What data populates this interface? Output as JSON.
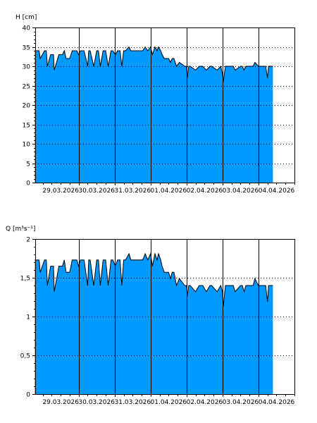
{
  "fill_color": "#0099ff",
  "chart_data": [
    {
      "type": "area",
      "ylabel": "H [cm]",
      "ylim": [
        0,
        40
      ],
      "yticks": [
        "0",
        "5",
        "10",
        "15",
        "20",
        "25",
        "30",
        "35",
        "40"
      ],
      "ytick_values": [
        0,
        5,
        10,
        15,
        20,
        25,
        30,
        35,
        40
      ],
      "xlim": [
        "2026-03-28 19:00",
        "2026-04-05 00:00"
      ],
      "x_tick_labels": [
        "29.03.2026",
        "30.03.2026",
        "31.03.2026",
        "01.04.2026",
        "02.04.2026",
        "03.04.2026",
        "04.04.2026"
      ],
      "x_tick_times": [
        29.5,
        30.5,
        31.5,
        32.5,
        33.5,
        34.5,
        35.5
      ],
      "x_grid_times": [
        30,
        31,
        32,
        33,
        34,
        35
      ],
      "grid": "horizontal dotted, vertical solid at midnight",
      "series": [
        {
          "x": [
            28.78,
            28.9,
            28.93,
            29.05,
            29.1,
            29.13,
            29.22,
            29.3,
            29.32,
            29.45,
            29.55,
            29.6,
            29.65,
            29.75,
            29.82,
            29.95,
            30.0,
            30.05,
            30.15,
            30.25,
            30.28,
            30.32,
            30.42,
            30.5,
            30.55,
            30.6,
            30.68,
            30.75,
            30.82,
            30.9,
            30.95,
            31.02,
            31.08,
            31.15,
            31.2,
            31.25,
            31.3,
            31.4,
            31.45,
            31.5,
            31.6,
            31.68,
            31.78,
            31.85,
            31.92,
            32.0,
            32.05,
            32.12,
            32.18,
            32.22,
            32.28,
            32.32,
            32.38,
            32.45,
            32.5,
            32.55,
            32.6,
            32.65,
            32.72,
            32.8,
            32.95,
            33.0,
            33.02,
            33.06,
            33.1,
            33.25,
            33.35,
            33.45,
            33.55,
            33.65,
            33.7,
            33.85,
            33.95,
            34.0,
            34.02,
            34.08,
            34.15,
            34.3,
            34.35,
            34.5,
            34.55,
            34.6,
            34.65,
            34.8,
            34.85,
            34.9,
            35.0,
            35.05,
            35.2,
            35.25,
            35.28,
            35.4
          ],
          "values": [
            34,
            34,
            32,
            34,
            34,
            30,
            33,
            33,
            29,
            33,
            33,
            34,
            32,
            32,
            34,
            34,
            33,
            34,
            34,
            30,
            34,
            34,
            30,
            34,
            34,
            30,
            34,
            34,
            30,
            34,
            34,
            33,
            34,
            34,
            30,
            34,
            34,
            35,
            34,
            34,
            34,
            34,
            34,
            35,
            34,
            35,
            33,
            35,
            34,
            35,
            34,
            33,
            32,
            32,
            32,
            31,
            32,
            32,
            30,
            31,
            30,
            30,
            27,
            30,
            30,
            29,
            30,
            30,
            29,
            30,
            30,
            29,
            30,
            28,
            26,
            30,
            30,
            30,
            29,
            30,
            30,
            29,
            30,
            30,
            30,
            31,
            30,
            30,
            30,
            27,
            30,
            30
          ]
        }
      ]
    },
    {
      "type": "area",
      "ylabel": "Q [m³s⁻¹]",
      "ylim": [
        0,
        2
      ],
      "yticks": [
        "0",
        "0,5",
        "1",
        "1,5",
        "2"
      ],
      "ytick_values": [
        0,
        0.5,
        1,
        1.5,
        2
      ],
      "xlim": [
        "2026-03-28 19:00",
        "2026-04-05 00:00"
      ],
      "x_tick_labels": [
        "29.03.2026",
        "30.03.2026",
        "31.03.2026",
        "01.04.2026",
        "02.04.2026",
        "03.04.2026",
        "04.04.2026"
      ],
      "x_tick_times": [
        29.5,
        30.5,
        31.5,
        32.5,
        33.5,
        34.5,
        35.5
      ],
      "x_grid_times": [
        30,
        31,
        32,
        33,
        34,
        35
      ],
      "grid": "horizontal dotted, vertical solid at midnight",
      "series": [
        {
          "x": [
            28.78,
            28.9,
            28.93,
            29.05,
            29.1,
            29.13,
            29.22,
            29.3,
            29.32,
            29.45,
            29.55,
            29.6,
            29.65,
            29.75,
            29.82,
            29.95,
            30.0,
            30.05,
            30.15,
            30.25,
            30.28,
            30.32,
            30.42,
            30.5,
            30.55,
            30.6,
            30.68,
            30.75,
            30.82,
            30.9,
            30.95,
            31.02,
            31.08,
            31.15,
            31.2,
            31.25,
            31.3,
            31.4,
            31.45,
            31.5,
            31.6,
            31.68,
            31.78,
            31.85,
            31.92,
            32.0,
            32.05,
            32.12,
            32.18,
            32.22,
            32.28,
            32.32,
            32.38,
            32.45,
            32.5,
            32.55,
            32.6,
            32.65,
            32.72,
            32.8,
            32.95,
            33.0,
            33.02,
            33.06,
            33.1,
            33.25,
            33.35,
            33.45,
            33.55,
            33.65,
            33.7,
            33.85,
            33.95,
            34.0,
            34.02,
            34.08,
            34.15,
            34.3,
            34.35,
            34.5,
            34.55,
            34.6,
            34.65,
            34.8,
            34.85,
            34.9,
            35.0,
            35.05,
            35.2,
            35.25,
            35.28,
            35.4
          ],
          "values": [
            1.73,
            1.73,
            1.57,
            1.73,
            1.73,
            1.4,
            1.65,
            1.65,
            1.32,
            1.65,
            1.65,
            1.73,
            1.57,
            1.57,
            1.73,
            1.73,
            1.65,
            1.73,
            1.73,
            1.4,
            1.73,
            1.73,
            1.4,
            1.73,
            1.73,
            1.4,
            1.73,
            1.73,
            1.4,
            1.73,
            1.73,
            1.65,
            1.73,
            1.73,
            1.4,
            1.73,
            1.73,
            1.81,
            1.73,
            1.73,
            1.73,
            1.73,
            1.73,
            1.81,
            1.73,
            1.81,
            1.65,
            1.81,
            1.73,
            1.81,
            1.73,
            1.65,
            1.57,
            1.57,
            1.57,
            1.49,
            1.57,
            1.57,
            1.4,
            1.49,
            1.4,
            1.4,
            1.26,
            1.4,
            1.4,
            1.32,
            1.4,
            1.4,
            1.32,
            1.4,
            1.4,
            1.32,
            1.4,
            1.32,
            1.13,
            1.4,
            1.4,
            1.4,
            1.32,
            1.4,
            1.4,
            1.32,
            1.4,
            1.4,
            1.4,
            1.49,
            1.4,
            1.4,
            1.4,
            1.19,
            1.4,
            1.4
          ]
        }
      ]
    }
  ]
}
